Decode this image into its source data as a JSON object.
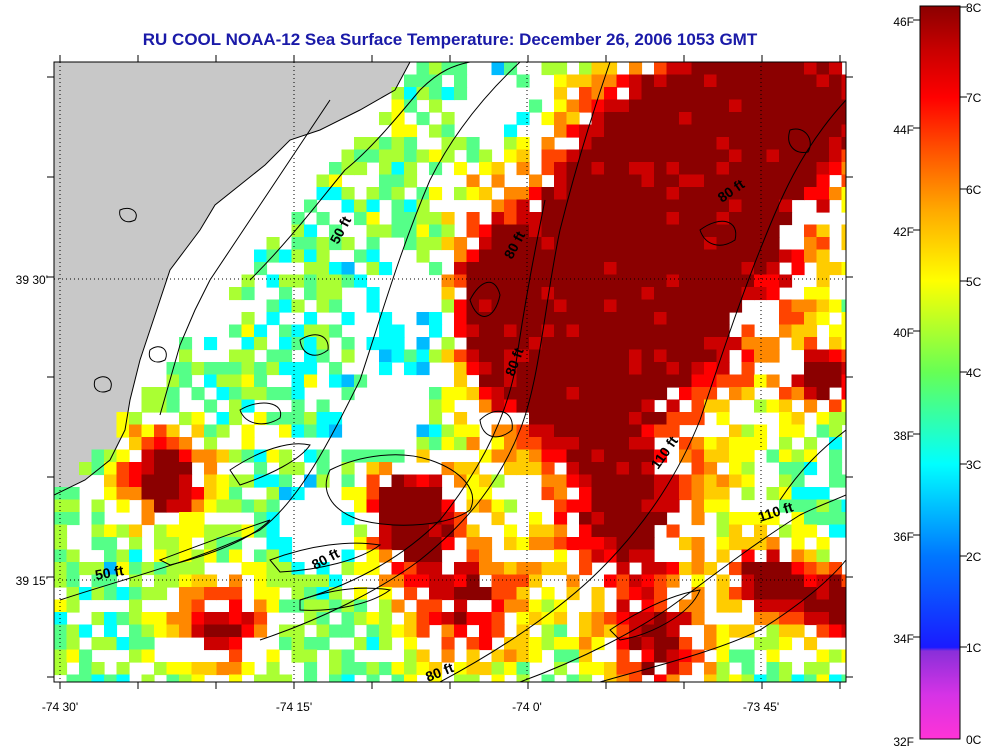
{
  "title": "RU COOL  NOAA-12  Sea Surface Temperature:  December 26, 2006 1053 GMT",
  "longitude_ticks": [
    "-74 30'",
    "-74 15'",
    "-74 0'",
    "-73 45'"
  ],
  "latitude_ticks": [
    "39 30'",
    "39 15'"
  ],
  "depth_labels": [
    "50 ft",
    "80 ft",
    "80 ft",
    "80 ft",
    "80 ft",
    "80 ft",
    "110 ft",
    "110 ft",
    "50 ft"
  ],
  "colorbar": {
    "fahrenheit_labels": [
      "46F",
      "44F",
      "42F",
      "40F",
      "38F",
      "36F",
      "34F",
      "32F"
    ],
    "celsius_labels": [
      "8C",
      "7C",
      "6C",
      "5C",
      "4C",
      "3C",
      "2C",
      "1C",
      "0C"
    ],
    "range_c": [
      0,
      8
    ],
    "colors": [
      "#ff33d6",
      "#9a2fd9",
      "#1a1aff",
      "#00aaff",
      "#00ffff",
      "#66ff66",
      "#ffff00",
      "#ffaa00",
      "#ff5500",
      "#ff0000",
      "#cc0000",
      "#8b0000"
    ]
  },
  "colors": {
    "land": "#c8c8c8",
    "no_data": "#ffffff",
    "title": "#1a1aa8"
  }
}
